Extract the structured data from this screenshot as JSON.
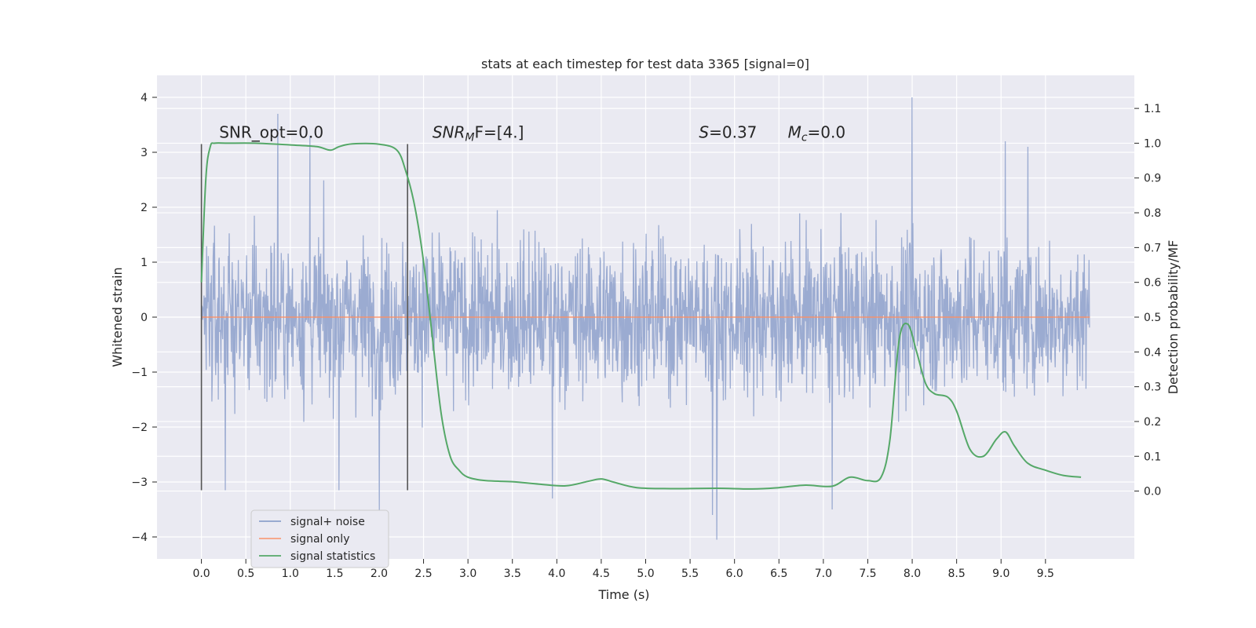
{
  "chart_data": {
    "type": "line",
    "title": "stats at each timestep for test data 3365 [signal=0]",
    "xlabel": "Time (s)",
    "ylabel_left": "Whitened strain",
    "ylabel_right": "Detection probability/MF",
    "xlim": [
      -0.5,
      10.5
    ],
    "ylim_left": [
      -4.4,
      4.4
    ],
    "ylim_right": [
      -0.195,
      1.195
    ],
    "x_ticks": [
      "0.0",
      "0.5",
      "1.0",
      "1.5",
      "2.0",
      "2.5",
      "3.0",
      "3.5",
      "4.0",
      "4.5",
      "5.0",
      "5.5",
      "6.0",
      "6.5",
      "7.0",
      "7.5",
      "8.0",
      "8.5",
      "9.0",
      "9.5"
    ],
    "y_left_ticks": [
      "4",
      "3",
      "2",
      "1",
      "0",
      "−1",
      "−2",
      "−3",
      "−4"
    ],
    "y_right_ticks": [
      "1.1",
      "1.0",
      "0.9",
      "0.8",
      "0.7",
      "0.6",
      "0.5",
      "0.4",
      "0.3",
      "0.2",
      "0.1",
      "0.0"
    ],
    "grid": true,
    "legend_position": "lower-left",
    "vertical_markers": [
      {
        "x": 0.0,
        "y_range": [
          -3.15,
          3.15
        ]
      },
      {
        "x": 2.32,
        "y_range": [
          -3.15,
          3.15
        ]
      }
    ],
    "annotations": [
      {
        "x": 0.2,
        "y": 3.15,
        "text": "SNR_opt=0.0"
      },
      {
        "x": 2.6,
        "y": 3.15,
        "base": "SNR",
        "sub": "M",
        "rest": "F=[4.]"
      },
      {
        "x": 5.6,
        "y": 3.15,
        "base": "S",
        "rest": "=0.37"
      },
      {
        "x": 6.6,
        "y": 3.15,
        "base": "M",
        "sub": "c",
        "rest": "=0.0"
      }
    ],
    "series": [
      {
        "name": "signal+ noise",
        "color": "#8da0cb",
        "axis": "left",
        "x_range": [
          0.0,
          10.0
        ],
        "sample_rate_hz": 204.8,
        "typical_range": [
          -2.3,
          2.3
        ],
        "extremes": [
          {
            "x": 0.86,
            "y": 3.7
          },
          {
            "x": 1.22,
            "y": 3.3
          },
          {
            "x": 2.0,
            "y": -3.6
          },
          {
            "x": 3.95,
            "y": -3.3
          },
          {
            "x": 5.75,
            "y": -3.6
          },
          {
            "x": 5.8,
            "y": -4.05
          },
          {
            "x": 8.0,
            "y": 4.0
          },
          {
            "x": 7.1,
            "y": -3.5
          },
          {
            "x": 9.05,
            "y": 3.2
          },
          {
            "x": 9.3,
            "y": 3.1
          },
          {
            "x": 1.55,
            "y": -3.15
          },
          {
            "x": 0.27,
            "y": -3.15
          }
        ]
      },
      {
        "name": "signal only",
        "color": "#fc8d62",
        "axis": "left",
        "x": [
          0.0,
          10.0
        ],
        "y": [
          0.0,
          0.0
        ]
      },
      {
        "name": "signal statistics",
        "color": "#55a868",
        "axis": "right",
        "x": [
          0.0,
          0.05,
          0.1,
          0.15,
          0.3,
          0.6,
          1.0,
          1.3,
          1.45,
          1.55,
          1.7,
          2.0,
          2.2,
          2.3,
          2.4,
          2.5,
          2.6,
          2.7,
          2.8,
          2.9,
          3.0,
          3.2,
          3.5,
          3.8,
          4.1,
          4.35,
          4.5,
          4.65,
          4.9,
          5.3,
          5.8,
          6.2,
          6.5,
          6.8,
          7.1,
          7.3,
          7.5,
          7.65,
          7.75,
          7.85,
          7.95,
          8.05,
          8.15,
          8.25,
          8.4,
          8.5,
          8.65,
          8.8,
          8.95,
          9.05,
          9.15,
          9.3,
          9.5,
          9.7,
          9.9
        ],
        "y": [
          0.6,
          0.9,
          0.99,
          1.0,
          1.0,
          1.0,
          0.995,
          0.99,
          0.98,
          0.99,
          0.998,
          0.997,
          0.98,
          0.92,
          0.82,
          0.66,
          0.44,
          0.22,
          0.1,
          0.06,
          0.04,
          0.03,
          0.027,
          0.02,
          0.015,
          0.028,
          0.035,
          0.025,
          0.01,
          0.007,
          0.008,
          0.006,
          0.01,
          0.017,
          0.014,
          0.04,
          0.03,
          0.04,
          0.15,
          0.43,
          0.48,
          0.4,
          0.31,
          0.28,
          0.27,
          0.23,
          0.12,
          0.1,
          0.15,
          0.17,
          0.13,
          0.08,
          0.06,
          0.045,
          0.04
        ]
      }
    ]
  }
}
